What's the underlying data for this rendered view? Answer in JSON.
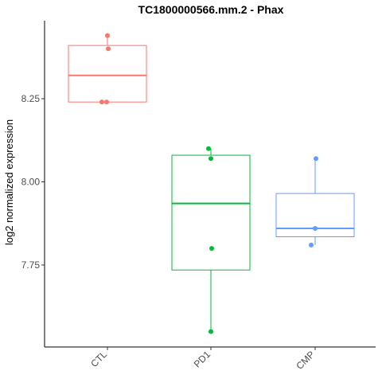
{
  "chart_data": {
    "type": "box",
    "title": "TC1800000566.mm.2 - Phax",
    "xlabel": "",
    "ylabel": "log2 normalized expression",
    "ylim": [
      7.5,
      8.47
    ],
    "yticks": [
      7.75,
      8.0,
      8.25
    ],
    "ytick_labels": [
      "7.75",
      "8.00",
      "8.25"
    ],
    "grid": false,
    "legend": "none",
    "categories": [
      "CTL",
      "PD1",
      "CMP"
    ],
    "groups": [
      {
        "category": "CTL",
        "color": "#F8766D",
        "box": {
          "min": 8.24,
          "q1": 8.24,
          "median": 8.32,
          "q3": 8.41,
          "max": 8.44
        },
        "points": [
          8.44,
          8.4,
          8.24,
          8.24
        ]
      },
      {
        "category": "PD1",
        "color": "#00BA38",
        "box": {
          "min": 7.55,
          "q1": 7.735,
          "median": 7.935,
          "q3": 8.08,
          "max": 8.1
        },
        "points": [
          8.1,
          8.07,
          7.8,
          7.55
        ]
      },
      {
        "category": "CMP",
        "color": "#619CFF",
        "box": {
          "min": 7.81,
          "q1": 7.835,
          "median": 7.86,
          "q3": 7.965,
          "max": 8.07
        },
        "points": [
          8.07,
          7.86,
          7.81
        ]
      }
    ]
  }
}
